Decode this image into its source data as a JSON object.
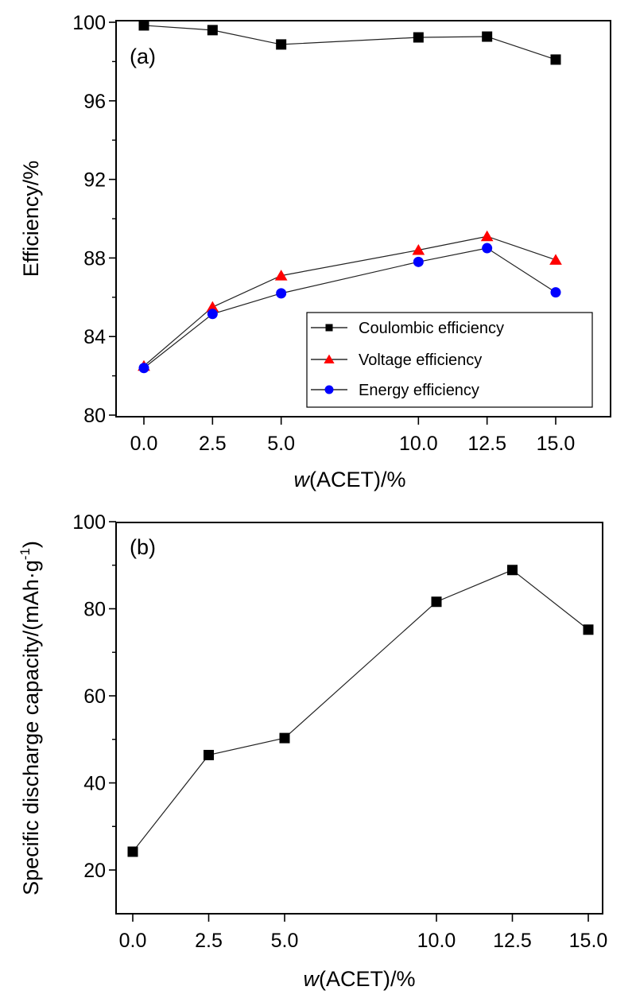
{
  "chart_data": [
    {
      "type": "line",
      "panel_label": "(a)",
      "title": "",
      "xlabel_italic": "w",
      "xlabel_rest": "(ACET)/%",
      "ylabel": "Efficiency/%",
      "x": [
        0.0,
        2.5,
        5.0,
        10.0,
        12.5,
        15.0
      ],
      "x_ticks": [
        "0.0",
        "2.5",
        "5.0",
        "10.0",
        "12.5",
        "15.0"
      ],
      "y_ticks": [
        "80",
        "84",
        "88",
        "92",
        "96",
        "100"
      ],
      "ylim": [
        80,
        100
      ],
      "grid": false,
      "legend_position": "bottom-right",
      "series": [
        {
          "name": "Coulombic efficiency",
          "marker": "square",
          "color": "#000000",
          "values": [
            99.84,
            99.6,
            98.87,
            99.23,
            99.27,
            98.1
          ]
        },
        {
          "name": "Voltage efficiency",
          "marker": "triangle",
          "color": "#ff0000",
          "values": [
            82.5,
            85.5,
            87.1,
            88.4,
            89.1,
            87.9
          ]
        },
        {
          "name": "Energy efficiency",
          "marker": "circle",
          "color": "#0000ff",
          "values": [
            82.4,
            85.15,
            86.2,
            87.8,
            88.5,
            86.25
          ]
        }
      ]
    },
    {
      "type": "line",
      "panel_label": "(b)",
      "title": "",
      "xlabel_italic": "w",
      "xlabel_rest": "(ACET)/%",
      "ylabel": "Specific discharge capacity/(mAh·g",
      "ylabel_sup": "-1",
      "ylabel_end": ")",
      "x": [
        0.0,
        2.5,
        5.0,
        10.0,
        12.5,
        15.0
      ],
      "x_ticks": [
        "0.0",
        "2.5",
        "5.0",
        "10.0",
        "12.5",
        "15.0"
      ],
      "y_ticks": [
        "20",
        "40",
        "60",
        "80",
        "100"
      ],
      "ylim": [
        10,
        100
      ],
      "grid": false,
      "series": [
        {
          "name": "Specific discharge capacity",
          "marker": "square",
          "color": "#000000",
          "values": [
            24.2,
            46.4,
            50.3,
            81.6,
            88.9,
            75.2
          ]
        }
      ]
    }
  ]
}
